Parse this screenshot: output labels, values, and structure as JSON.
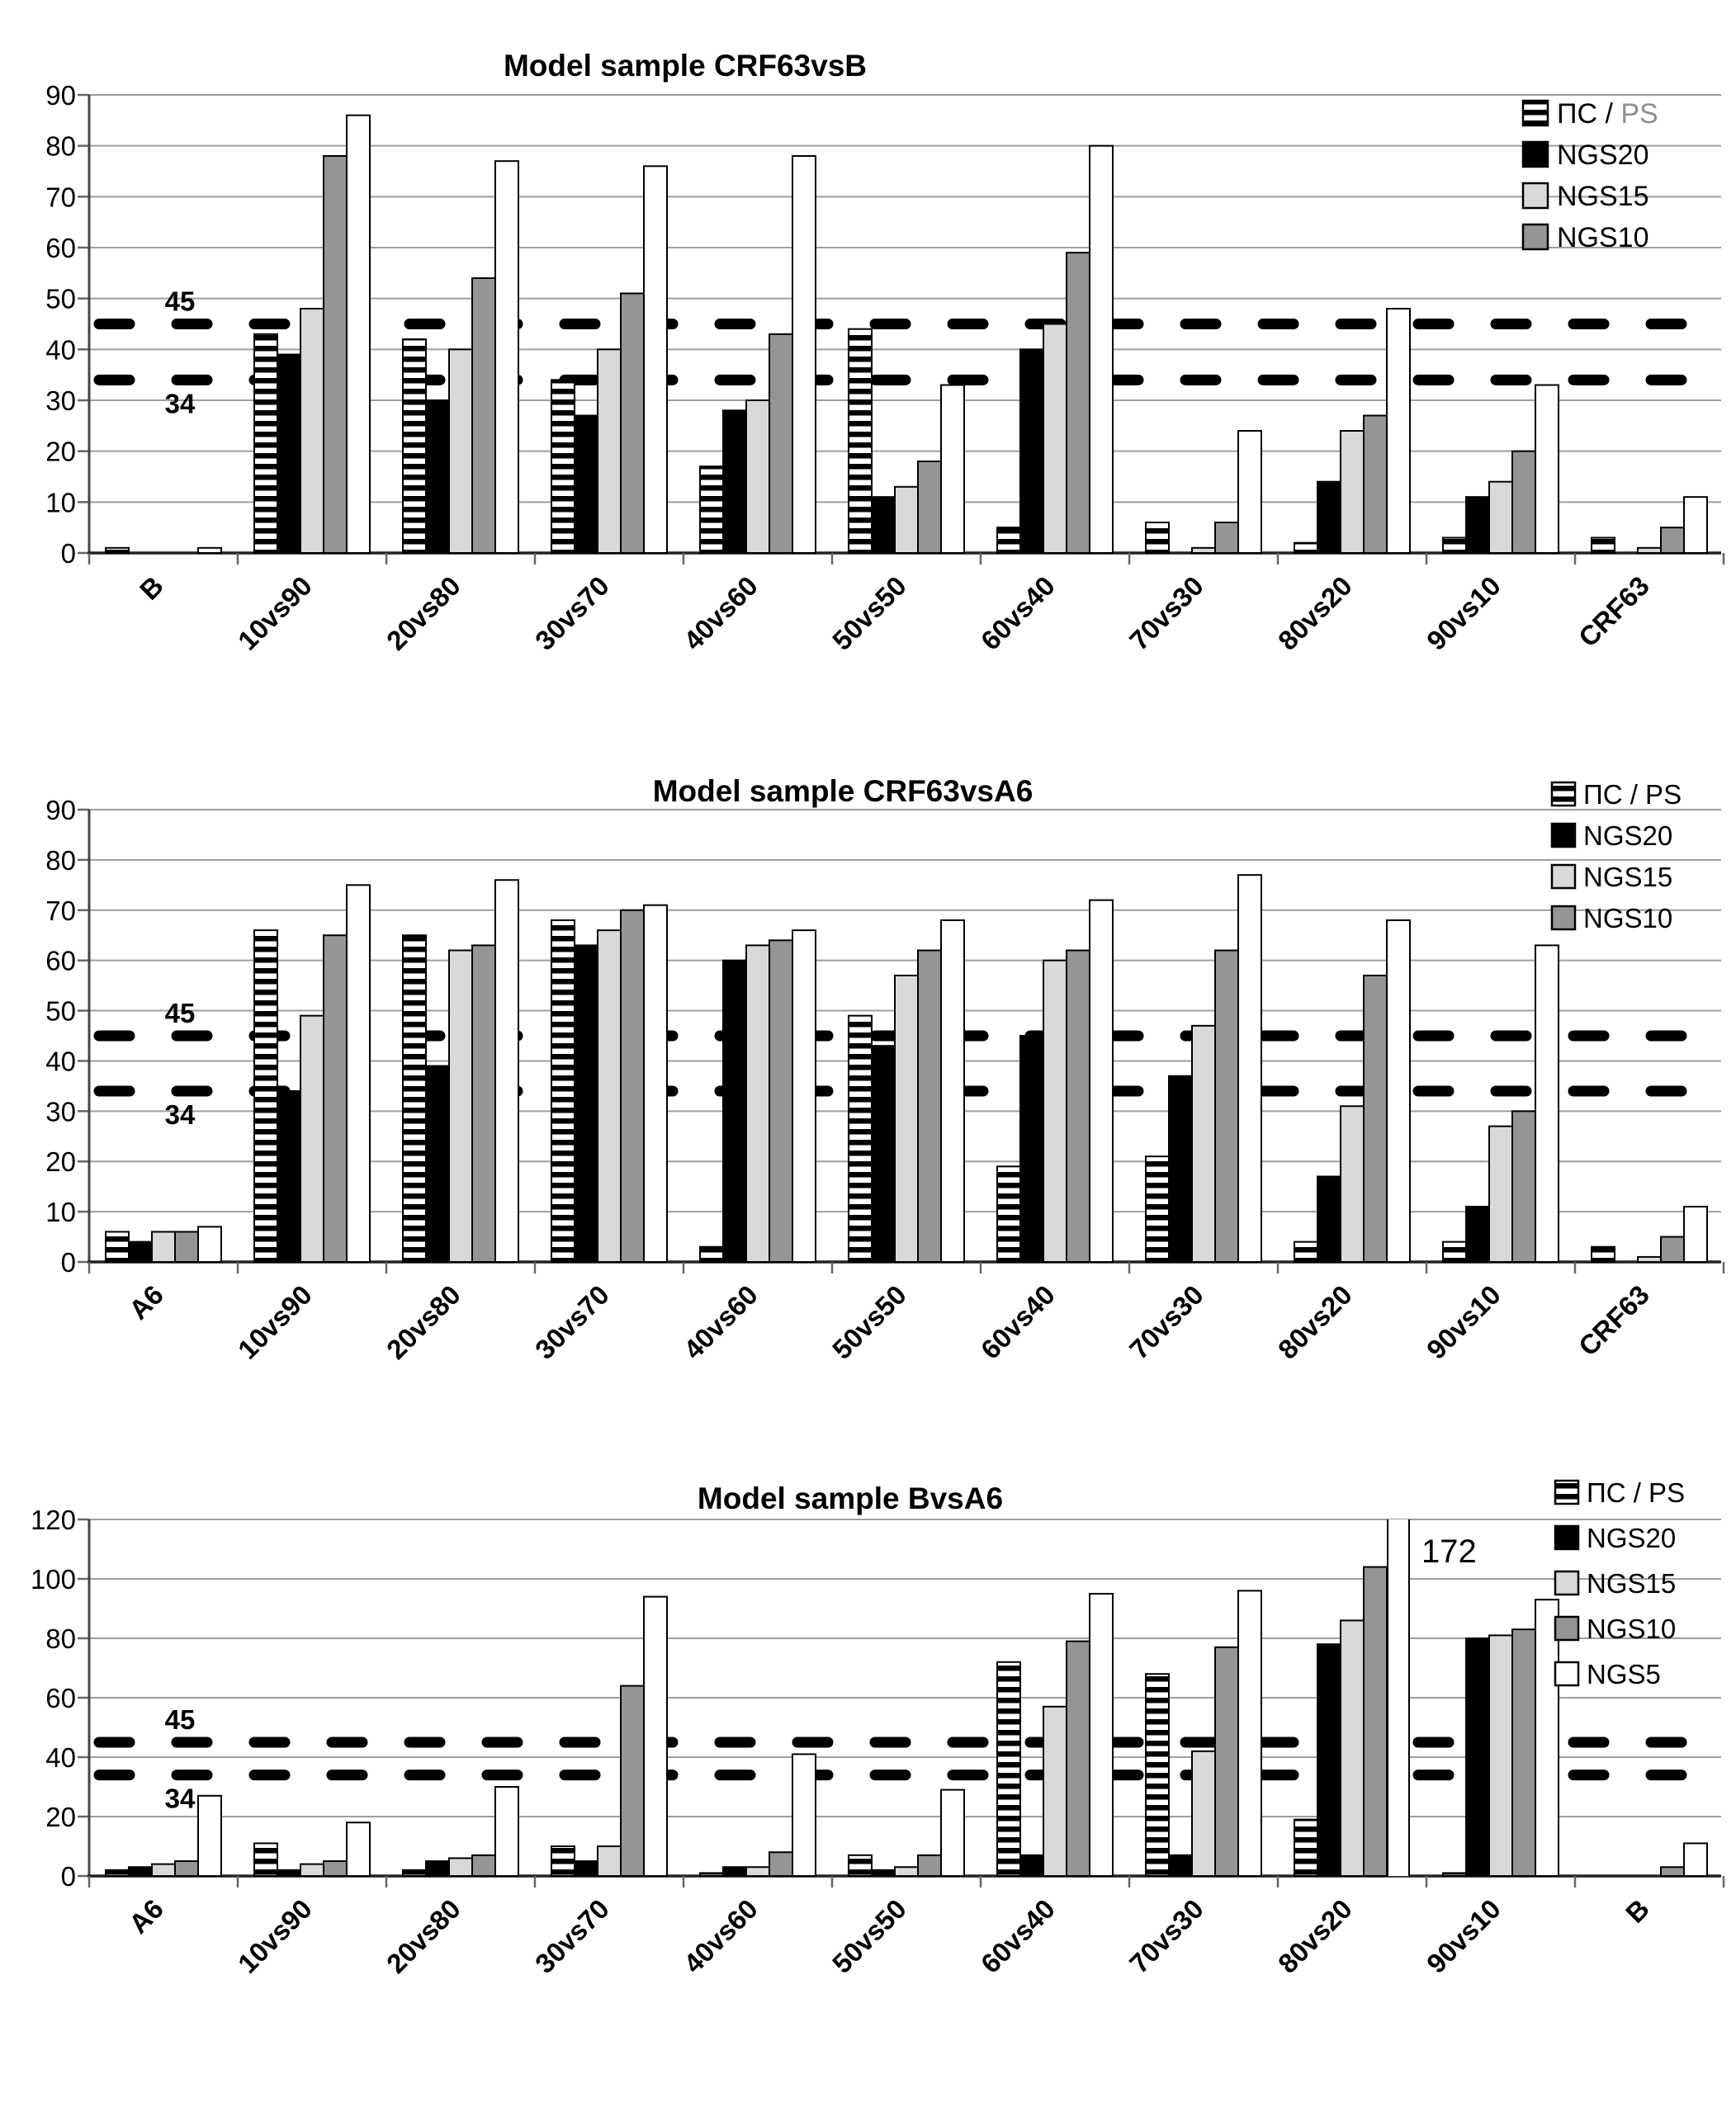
{
  "figure": {
    "description": "Three stacked bar charts of model sample recombination detection",
    "background": "#ffffff",
    "grid_color": "#9e9e9e",
    "dash_color": "#000000"
  },
  "charts": [
    {
      "id": "crf63vsb",
      "title": "Model sample CRF63vsB",
      "chart_data": {
        "type": "bar",
        "ylim": [
          0,
          90
        ],
        "ytick_step": 10,
        "yticks": [
          0,
          10,
          20,
          30,
          40,
          50,
          60,
          70,
          80,
          90
        ],
        "grid": true,
        "legend_position": "right",
        "ref_lines": [
          {
            "value": 45,
            "label": "45",
            "label_side": "above"
          },
          {
            "value": 34,
            "label": "34",
            "label_side": "below"
          }
        ],
        "categories": [
          "B",
          "10vs90",
          "20vs80",
          "30vs70",
          "40vs60",
          "50vs50",
          "60vs40",
          "70vs30",
          "80vs20",
          "90vs10",
          "CRF63"
        ],
        "series": [
          {
            "key": "ps",
            "name": "ПС / PS",
            "name_parts": [
              {
                "text": "ПС / ",
                "color": "#000000"
              },
              {
                "text": "PS",
                "color": "#8f8f8f"
              }
            ],
            "style": "hatch",
            "in_legend": true,
            "values": [
              1,
              43,
              42,
              34,
              17,
              44,
              5,
              6,
              2,
              3,
              3
            ]
          },
          {
            "key": "ngs20",
            "name": "NGS20",
            "color": "#000000",
            "in_legend": true,
            "values": [
              0,
              39,
              30,
              27,
              28,
              11,
              40,
              0,
              14,
              11,
              0
            ]
          },
          {
            "key": "ngs15",
            "name": "NGS15",
            "color": "#d9d9d9",
            "in_legend": true,
            "values": [
              0,
              48,
              40,
              40,
              30,
              13,
              45,
              1,
              24,
              14,
              1
            ]
          },
          {
            "key": "ngs10",
            "name": "NGS10",
            "color": "#959595",
            "in_legend": true,
            "values": [
              0,
              78,
              54,
              51,
              43,
              18,
              59,
              6,
              27,
              20,
              5
            ]
          },
          {
            "key": "ngs5",
            "name": "NGS5",
            "color": "#ffffff",
            "in_legend": false,
            "values": [
              1,
              86,
              77,
              76,
              78,
              33,
              80,
              24,
              48,
              33,
              11
            ]
          }
        ],
        "annotations": []
      }
    },
    {
      "id": "crf63vsa6",
      "title": "Model sample CRF63vsA6",
      "chart_data": {
        "type": "bar",
        "ylim": [
          0,
          90
        ],
        "ytick_step": 10,
        "yticks": [
          0,
          10,
          20,
          30,
          40,
          50,
          60,
          70,
          80,
          90
        ],
        "grid": true,
        "legend_position": "right",
        "ref_lines": [
          {
            "value": 45,
            "label": "45",
            "label_side": "above"
          },
          {
            "value": 34,
            "label": "34",
            "label_side": "below"
          }
        ],
        "categories": [
          "A6",
          "10vs90",
          "20vs80",
          "30vs70",
          "40vs60",
          "50vs50",
          "60vs40",
          "70vs30",
          "80vs20",
          "90vs10",
          "CRF63"
        ],
        "series": [
          {
            "key": "ps",
            "name": "ПС / PS",
            "name_parts": [
              {
                "text": "ПС / PS",
                "color": "#000000"
              }
            ],
            "style": "hatch",
            "in_legend": true,
            "values": [
              6,
              66,
              65,
              68,
              3,
              49,
              19,
              21,
              4,
              4,
              3
            ]
          },
          {
            "key": "ngs20",
            "name": "NGS20",
            "color": "#000000",
            "in_legend": true,
            "values": [
              4,
              34,
              39,
              63,
              60,
              43,
              45,
              37,
              17,
              11,
              0
            ]
          },
          {
            "key": "ngs15",
            "name": "NGS15",
            "color": "#d9d9d9",
            "in_legend": true,
            "values": [
              6,
              49,
              62,
              66,
              63,
              57,
              60,
              47,
              31,
              27,
              1
            ]
          },
          {
            "key": "ngs10",
            "name": "NGS10",
            "color": "#959595",
            "in_legend": true,
            "values": [
              6,
              65,
              63,
              70,
              64,
              62,
              62,
              62,
              57,
              30,
              5
            ]
          },
          {
            "key": "ngs5",
            "name": "NGS5",
            "color": "#ffffff",
            "in_legend": false,
            "values": [
              7,
              75,
              76,
              71,
              66,
              68,
              72,
              77,
              68,
              63,
              11
            ]
          }
        ],
        "annotations": []
      }
    },
    {
      "id": "bvsa6",
      "title": "Model sample BvsA6",
      "chart_data": {
        "type": "bar",
        "ylim": [
          0,
          120
        ],
        "ytick_step": 20,
        "yticks": [
          0,
          20,
          40,
          60,
          80,
          100,
          120
        ],
        "grid": true,
        "legend_position": "right",
        "ref_lines": [
          {
            "value": 45,
            "label": "45",
            "label_side": "above"
          },
          {
            "value": 34,
            "label": "34",
            "label_side": "below"
          }
        ],
        "categories": [
          "A6",
          "10vs90",
          "20vs80",
          "30vs70",
          "40vs60",
          "50vs50",
          "60vs40",
          "70vs30",
          "80vs20",
          "90vs10",
          "B"
        ],
        "series": [
          {
            "key": "ps",
            "name": "ПС / PS",
            "name_parts": [
              {
                "text": "ПС / PS",
                "color": "#000000"
              }
            ],
            "style": "hatch",
            "in_legend": true,
            "values": [
              2,
              11,
              2,
              10,
              1,
              7,
              72,
              68,
              19,
              1,
              0
            ]
          },
          {
            "key": "ngs20",
            "name": "NGS20",
            "color": "#000000",
            "in_legend": true,
            "values": [
              3,
              2,
              5,
              5,
              3,
              2,
              7,
              7,
              78,
              80,
              0
            ]
          },
          {
            "key": "ngs15",
            "name": "NGS15",
            "color": "#d9d9d9",
            "in_legend": true,
            "values": [
              4,
              4,
              6,
              10,
              3,
              3,
              57,
              42,
              86,
              81,
              0
            ]
          },
          {
            "key": "ngs10",
            "name": "NGS10",
            "color": "#959595",
            "in_legend": true,
            "values": [
              5,
              5,
              7,
              64,
              8,
              7,
              79,
              77,
              104,
              83,
              3
            ]
          },
          {
            "key": "ngs5",
            "name": "NGS5",
            "color": "#ffffff",
            "in_legend": true,
            "values": [
              27,
              18,
              30,
              94,
              41,
              29,
              95,
              96,
              172,
              93,
              11
            ]
          }
        ],
        "annotations": [
          {
            "text": "172",
            "category": "80vs20",
            "series": "ngs5"
          }
        ]
      }
    }
  ]
}
